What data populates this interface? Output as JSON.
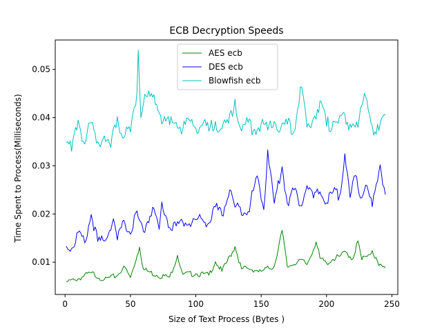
{
  "chart_data": {
    "type": "line",
    "title": "ECB Decryption Speeds",
    "xlabel": "Size of Text Process (Bytes )",
    "ylabel": "Time Spent to Process(Milliseconds)",
    "xlim": [
      -7.5,
      254.5
    ],
    "ylim": [
      0.0033,
      0.0561
    ],
    "xticks": [
      0,
      50,
      100,
      150,
      200,
      250
    ],
    "yticks": [
      0.01,
      0.02,
      0.03,
      0.04,
      0.05
    ],
    "xtick_labels": [
      "0",
      "50",
      "100",
      "150",
      "200",
      "250"
    ],
    "ytick_labels": [
      "0.01",
      "0.02",
      "0.03",
      "0.04",
      "0.05"
    ],
    "legend_position": "upper-center",
    "grid": false,
    "series": [
      {
        "name": "AES  ecb",
        "color": "#008000",
        "points": [
          [
            1,
            0.0059
          ],
          [
            8,
            0.0063
          ],
          [
            20,
            0.0078
          ],
          [
            30,
            0.0064
          ],
          [
            40,
            0.0072
          ],
          [
            45,
            0.0092
          ],
          [
            50,
            0.0068
          ],
          [
            57,
            0.0131
          ],
          [
            60,
            0.0085
          ],
          [
            70,
            0.0073
          ],
          [
            80,
            0.0069
          ],
          [
            86,
            0.0114
          ],
          [
            90,
            0.0075
          ],
          [
            100,
            0.0076
          ],
          [
            110,
            0.0073
          ],
          [
            115,
            0.0101
          ],
          [
            120,
            0.0081
          ],
          [
            130,
            0.0132
          ],
          [
            135,
            0.0086
          ],
          [
            140,
            0.0087
          ],
          [
            150,
            0.0081
          ],
          [
            160,
            0.0092
          ],
          [
            166,
            0.0166
          ],
          [
            170,
            0.009
          ],
          [
            180,
            0.0105
          ],
          [
            185,
            0.0095
          ],
          [
            192,
            0.0142
          ],
          [
            195,
            0.0108
          ],
          [
            200,
            0.0098
          ],
          [
            205,
            0.0106
          ],
          [
            210,
            0.0112
          ],
          [
            215,
            0.0121
          ],
          [
            220,
            0.0106
          ],
          [
            224,
            0.0144
          ],
          [
            227,
            0.0105
          ],
          [
            230,
            0.0112
          ],
          [
            235,
            0.0124
          ],
          [
            240,
            0.0093
          ],
          [
            245,
            0.0088
          ]
        ]
      },
      {
        "name": "DES  ecb",
        "color": "#0000ff",
        "points": [
          [
            1,
            0.0133
          ],
          [
            6,
            0.013
          ],
          [
            10,
            0.0162
          ],
          [
            15,
            0.014
          ],
          [
            20,
            0.0199
          ],
          [
            25,
            0.0143
          ],
          [
            30,
            0.0144
          ],
          [
            37,
            0.019
          ],
          [
            40,
            0.0146
          ],
          [
            45,
            0.0187
          ],
          [
            50,
            0.0158
          ],
          [
            54,
            0.0202
          ],
          [
            60,
            0.0163
          ],
          [
            67,
            0.0214
          ],
          [
            72,
            0.0168
          ],
          [
            74,
            0.0225
          ],
          [
            80,
            0.0172
          ],
          [
            85,
            0.0175
          ],
          [
            90,
            0.0184
          ],
          [
            95,
            0.018
          ],
          [
            100,
            0.0188
          ],
          [
            105,
            0.0189
          ],
          [
            110,
            0.0181
          ],
          [
            115,
            0.0215
          ],
          [
            120,
            0.0197
          ],
          [
            126,
            0.025
          ],
          [
            130,
            0.0214
          ],
          [
            140,
            0.0205
          ],
          [
            147,
            0.0279
          ],
          [
            152,
            0.0209
          ],
          [
            155,
            0.0333
          ],
          [
            160,
            0.0222
          ],
          [
            166,
            0.0298
          ],
          [
            170,
            0.0222
          ],
          [
            175,
            0.025
          ],
          [
            180,
            0.0217
          ],
          [
            185,
            0.0259
          ],
          [
            190,
            0.0233
          ],
          [
            195,
            0.0246
          ],
          [
            200,
            0.0223
          ],
          [
            205,
            0.0246
          ],
          [
            210,
            0.0238
          ],
          [
            214,
            0.0325
          ],
          [
            218,
            0.0234
          ],
          [
            222,
            0.028
          ],
          [
            226,
            0.0233
          ],
          [
            230,
            0.026
          ],
          [
            235,
            0.0215
          ],
          [
            241,
            0.0302
          ],
          [
            245,
            0.024
          ]
        ]
      },
      {
        "name": "Blowfish  ecb",
        "color": "#00bfbf",
        "points": [
          [
            1,
            0.0348
          ],
          [
            5,
            0.033
          ],
          [
            10,
            0.0395
          ],
          [
            15,
            0.0345
          ],
          [
            20,
            0.0389
          ],
          [
            25,
            0.035
          ],
          [
            30,
            0.0362
          ],
          [
            35,
            0.0338
          ],
          [
            40,
            0.0402
          ],
          [
            45,
            0.0358
          ],
          [
            50,
            0.037
          ],
          [
            55,
            0.0452
          ],
          [
            56,
            0.054
          ],
          [
            58,
            0.04
          ],
          [
            60,
            0.043
          ],
          [
            65,
            0.0444
          ],
          [
            70,
            0.0428
          ],
          [
            75,
            0.0392
          ],
          [
            80,
            0.0385
          ],
          [
            85,
            0.039
          ],
          [
            90,
            0.0375
          ],
          [
            95,
            0.0395
          ],
          [
            100,
            0.0378
          ],
          [
            105,
            0.0384
          ],
          [
            110,
            0.0372
          ],
          [
            115,
            0.0392
          ],
          [
            120,
            0.0377
          ],
          [
            125,
            0.0388
          ],
          [
            130,
            0.0438
          ],
          [
            135,
            0.0372
          ],
          [
            140,
            0.039
          ],
          [
            145,
            0.0376
          ],
          [
            150,
            0.0388
          ],
          [
            155,
            0.0374
          ],
          [
            160,
            0.0392
          ],
          [
            165,
            0.0378
          ],
          [
            170,
            0.0386
          ],
          [
            175,
            0.037
          ],
          [
            180,
            0.0464
          ],
          [
            185,
            0.038
          ],
          [
            190,
            0.0399
          ],
          [
            195,
            0.0435
          ],
          [
            200,
            0.0382
          ],
          [
            205,
            0.0392
          ],
          [
            210,
            0.0404
          ],
          [
            215,
            0.0386
          ],
          [
            220,
            0.0387
          ],
          [
            225,
            0.0398
          ],
          [
            230,
            0.0442
          ],
          [
            235,
            0.0382
          ],
          [
            240,
            0.0373
          ],
          [
            245,
            0.0405
          ]
        ]
      }
    ]
  }
}
